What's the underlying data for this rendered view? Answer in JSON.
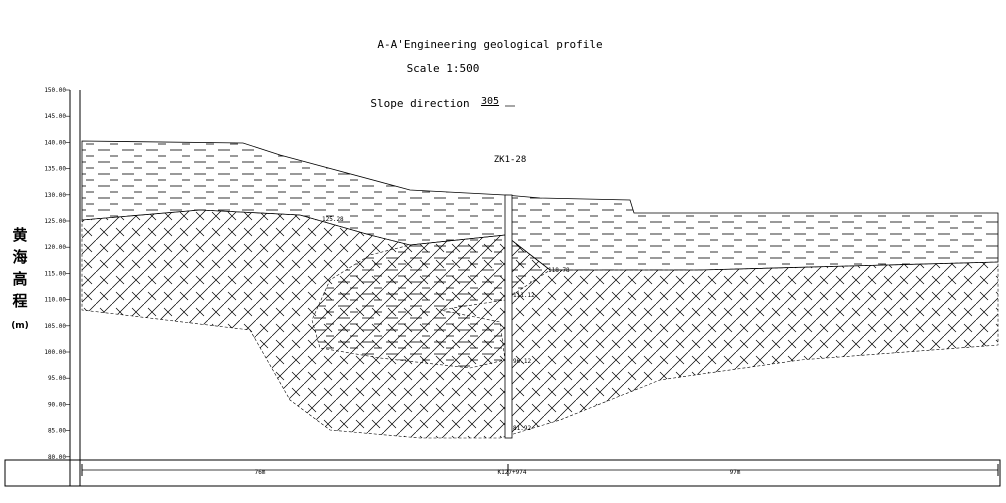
{
  "header": {
    "title": "A-A'Engineering geological profile",
    "scale": "Scale 1:500",
    "slope_label": "Slope direction",
    "slope_value": "305"
  },
  "axis": {
    "label": [
      "黄",
      "海",
      "高",
      "程",
      "(m)"
    ],
    "ticks": [
      "150.00",
      "145.00",
      "140.00",
      "135.00",
      "130.00",
      "125.00",
      "120.00",
      "115.00",
      "110.00",
      "105.00",
      "100.00",
      "95.00",
      "90.00",
      "85.00",
      "80.00"
    ]
  },
  "borehole": {
    "name": "ZK1-28",
    "labels": [
      "125.28",
      "118.78",
      "111.12",
      "96.12",
      "81.92"
    ]
  },
  "footer": {
    "left_distance": "76m",
    "station": "K127+974",
    "right_distance": "97m"
  }
}
